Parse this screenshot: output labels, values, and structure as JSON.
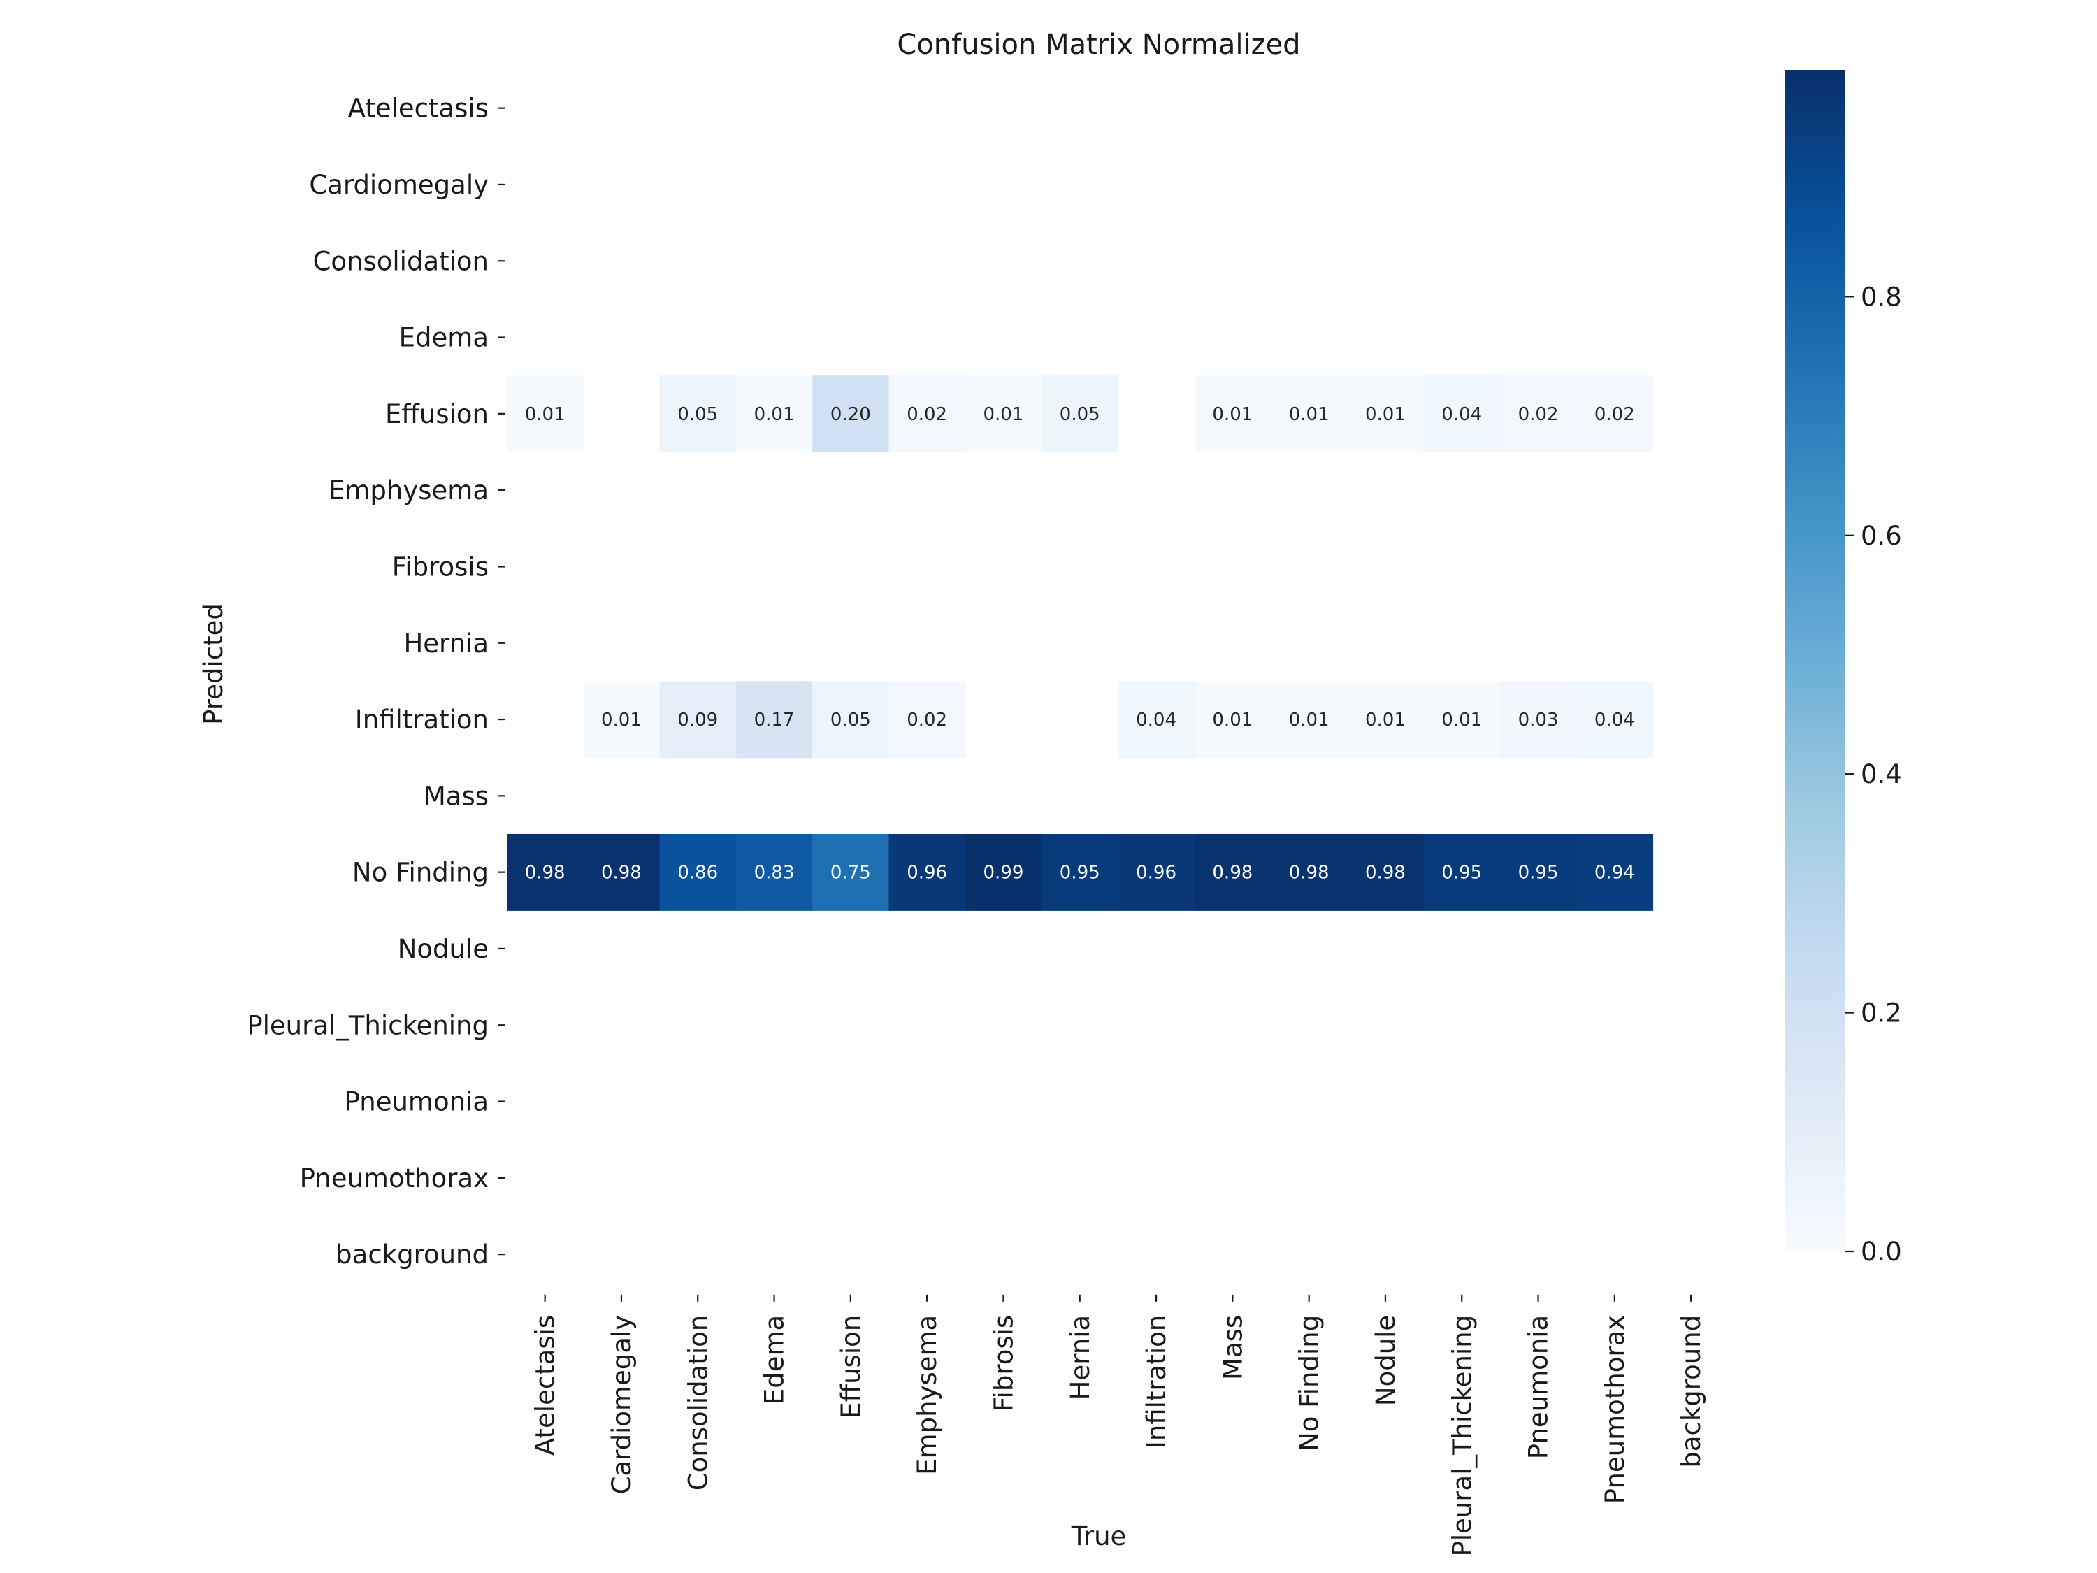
{
  "chart_data": {
    "type": "heatmap",
    "title": "Confusion Matrix Normalized",
    "xlabel": "True",
    "ylabel": "Predicted",
    "x_categories": [
      "Atelectasis",
      "Cardiomegaly",
      "Consolidation",
      "Edema",
      "Effusion",
      "Emphysema",
      "Fibrosis",
      "Hernia",
      "Infiltration",
      "Mass",
      "No Finding",
      "Nodule",
      "Pleural_Thickening",
      "Pneumonia",
      "Pneumothorax",
      "background"
    ],
    "y_categories": [
      "Atelectasis",
      "Cardiomegaly",
      "Consolidation",
      "Edema",
      "Effusion",
      "Emphysema",
      "Fibrosis",
      "Hernia",
      "Infiltration",
      "Mass",
      "No Finding",
      "Nodule",
      "Pleural_Thickening",
      "Pneumonia",
      "Pneumothorax",
      "background"
    ],
    "values": [
      [
        null,
        null,
        null,
        null,
        null,
        null,
        null,
        null,
        null,
        null,
        null,
        null,
        null,
        null,
        null,
        null
      ],
      [
        null,
        null,
        null,
        null,
        null,
        null,
        null,
        null,
        null,
        null,
        null,
        null,
        null,
        null,
        null,
        null
      ],
      [
        null,
        null,
        null,
        null,
        null,
        null,
        null,
        null,
        null,
        null,
        null,
        null,
        null,
        null,
        null,
        null
      ],
      [
        null,
        null,
        null,
        null,
        null,
        null,
        null,
        null,
        null,
        null,
        null,
        null,
        null,
        null,
        null,
        null
      ],
      [
        0.01,
        null,
        0.05,
        0.01,
        0.2,
        0.02,
        0.01,
        0.05,
        null,
        0.01,
        0.01,
        0.01,
        0.04,
        0.02,
        0.02,
        null
      ],
      [
        null,
        null,
        null,
        null,
        null,
        null,
        null,
        null,
        null,
        null,
        null,
        null,
        null,
        null,
        null,
        null
      ],
      [
        null,
        null,
        null,
        null,
        null,
        null,
        null,
        null,
        null,
        null,
        null,
        null,
        null,
        null,
        null,
        null
      ],
      [
        null,
        null,
        null,
        null,
        null,
        null,
        null,
        null,
        null,
        null,
        null,
        null,
        null,
        null,
        null,
        null
      ],
      [
        null,
        0.01,
        0.09,
        0.17,
        0.05,
        0.02,
        null,
        null,
        0.04,
        0.01,
        0.01,
        0.01,
        0.01,
        0.03,
        0.04,
        null
      ],
      [
        null,
        null,
        null,
        null,
        null,
        null,
        null,
        null,
        null,
        null,
        null,
        null,
        null,
        null,
        null,
        null
      ],
      [
        0.98,
        0.98,
        0.86,
        0.83,
        0.75,
        0.96,
        0.99,
        0.95,
        0.96,
        0.98,
        0.98,
        0.98,
        0.95,
        0.95,
        0.94,
        null
      ],
      [
        null,
        null,
        null,
        null,
        null,
        null,
        null,
        null,
        null,
        null,
        null,
        null,
        null,
        null,
        null,
        null
      ],
      [
        null,
        null,
        null,
        null,
        null,
        null,
        null,
        null,
        null,
        null,
        null,
        null,
        null,
        null,
        null,
        null
      ],
      [
        null,
        null,
        null,
        null,
        null,
        null,
        null,
        null,
        null,
        null,
        null,
        null,
        null,
        null,
        null,
        null
      ],
      [
        null,
        null,
        null,
        null,
        null,
        null,
        null,
        null,
        null,
        null,
        null,
        null,
        null,
        null,
        null,
        null
      ],
      [
        null,
        null,
        null,
        null,
        null,
        null,
        null,
        null,
        null,
        null,
        null,
        null,
        null,
        null,
        null,
        null
      ]
    ],
    "colorbar": {
      "colormap": "Blues",
      "range": [
        0,
        0.99
      ],
      "ticks": [
        0.0,
        0.2,
        0.4,
        0.6,
        0.8
      ],
      "tick_labels": [
        "0.0",
        "0.2",
        "0.4",
        "0.6",
        "0.8"
      ]
    },
    "grid": false
  }
}
